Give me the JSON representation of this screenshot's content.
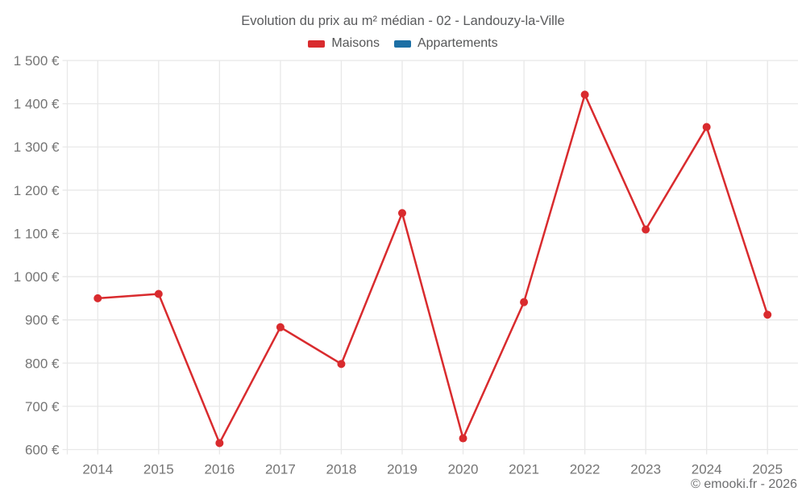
{
  "chart_data": {
    "type": "line",
    "title": "Evolution du prix au m² médian - 02 - Landouzy-la-Ville",
    "categories": [
      "2014",
      "2015",
      "2016",
      "2017",
      "2018",
      "2019",
      "2020",
      "2021",
      "2022",
      "2023",
      "2024",
      "2025"
    ],
    "series": [
      {
        "name": "Maisons",
        "color": "#d92b2e",
        "values": [
          950,
          960,
          615,
          883,
          798,
          1147,
          626,
          941,
          1421,
          1109,
          1346,
          912
        ]
      },
      {
        "name": "Appartements",
        "color": "#1c6fa5",
        "values": []
      }
    ],
    "xlabel": "",
    "ylabel": "",
    "ylim": [
      600,
      1500
    ],
    "ytick_step": 100,
    "ytick_suffix": " €",
    "grid": true,
    "legend_position": "top",
    "marker_radius": 5,
    "line_width": 2.5,
    "colors": {
      "grid": "#e8e8e8",
      "tick_text": "#757575",
      "title_text": "#595a5c",
      "background": "#ffffff"
    }
  },
  "footer": {
    "copyright": "© emooki.fr - 2026"
  }
}
